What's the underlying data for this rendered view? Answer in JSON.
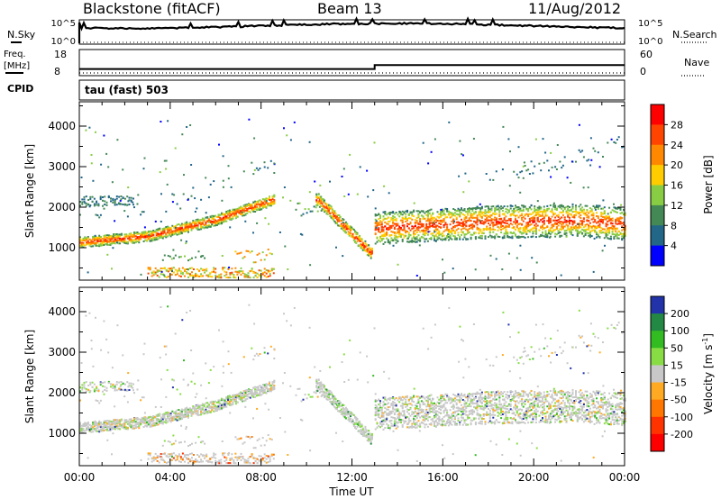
{
  "header": {
    "site": "Blackstone (fitACF)",
    "beam": "Beam 13",
    "date": "11/Aug/2012"
  },
  "summary_panels": {
    "nsky_label": "N.Sky",
    "nsearch_label": "N.Search",
    "nsky_ticks": [
      "10^5",
      "10^0"
    ],
    "nsearch_ticks": [
      "10^5",
      "10^0"
    ],
    "freq_label_1": "Freq.",
    "freq_label_2": "[MHz]",
    "freq_ticks": [
      "18",
      "8"
    ],
    "nave_label": "Nave",
    "nave_ticks": [
      "60",
      "0"
    ],
    "cpid_label": "CPID",
    "cpid_text": "tau (fast) 503"
  },
  "chart_data": [
    {
      "type": "heatmap",
      "name": "power",
      "ylabel": "Slant Range [km]",
      "xlabel": "",
      "ylim": [
        200,
        4600
      ],
      "xlim_hours": [
        0,
        24
      ],
      "y_ticks": [
        "4000",
        "3000",
        "2000",
        "1000"
      ],
      "colorbar_label": "Power [dB]",
      "colorbar_ticks": [
        "28",
        "24",
        "20",
        "16",
        "12",
        "8",
        "4"
      ],
      "colorbar_colors": [
        "#ff0000",
        "#ff4400",
        "#ff8800",
        "#ffcc00",
        "#88cc44",
        "#448855",
        "#226688",
        "#0000ff"
      ],
      "features": [
        {
          "t": [
            0,
            3,
            6,
            8.5
          ],
          "range": [
            1150,
            1300,
            1700,
            2200
          ],
          "power_db": 20
        },
        {
          "t": [
            10.5,
            12.8
          ],
          "range": [
            2200,
            900
          ],
          "power_db": 24
        },
        {
          "t": [
            13,
            18,
            22,
            24
          ],
          "range": [
            1500,
            1650,
            1700,
            1600
          ],
          "power_db": 22
        }
      ]
    },
    {
      "type": "heatmap",
      "name": "velocity",
      "ylabel": "Slant Range [km]",
      "xlabel": "Time UT",
      "ylim": [
        200,
        4600
      ],
      "xlim_hours": [
        0,
        24
      ],
      "y_ticks": [
        "4000",
        "3000",
        "2000",
        "1000"
      ],
      "x_ticks": [
        "00:00",
        "04:00",
        "08:00",
        "12:00",
        "16:00",
        "20:00",
        "00:00"
      ],
      "colorbar_label": "Velocity [m s^-1]",
      "colorbar_ticks": [
        "200",
        "100",
        "50",
        "15",
        "-15",
        "-50",
        "-100",
        "-200"
      ],
      "colorbar_colors": [
        "#2233aa",
        "#228844",
        "#33bb22",
        "#88dd44",
        "#c8c8c8",
        "#ffaa22",
        "#ff7700",
        "#ff3300",
        "#ff0000"
      ]
    },
    {
      "type": "line",
      "name": "freq",
      "x_hours": [
        0,
        13,
        13,
        24
      ],
      "y_mhz": [
        10,
        10,
        12,
        12
      ]
    }
  ]
}
